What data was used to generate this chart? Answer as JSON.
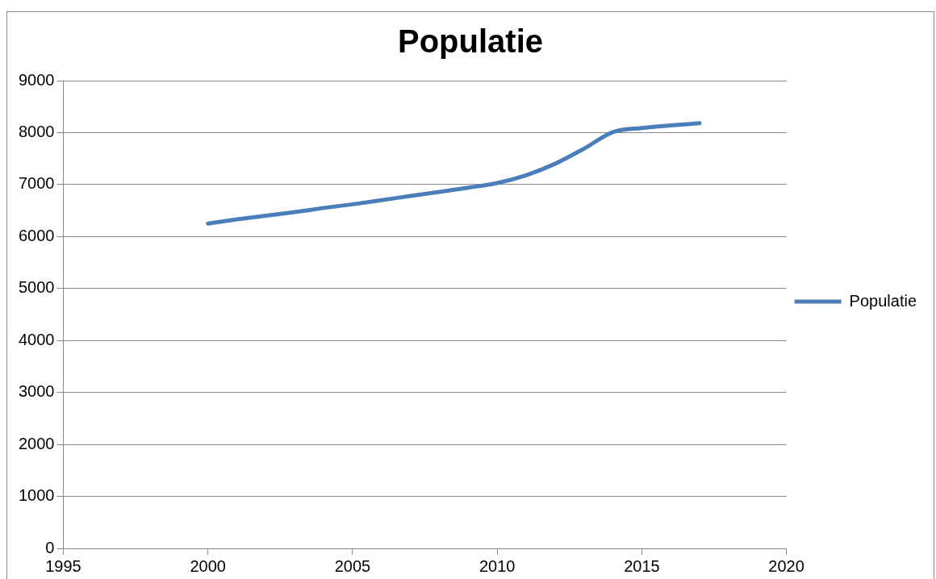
{
  "chart_data": {
    "type": "line",
    "title": "Populatie",
    "x": [
      2000,
      2001,
      2002,
      2003,
      2004,
      2005,
      2006,
      2007,
      2008,
      2009,
      2010,
      2011,
      2012,
      2013,
      2014,
      2015,
      2016,
      2017
    ],
    "series": [
      {
        "name": "Populatie",
        "color": "#4a7ebb",
        "values": [
          6250,
          6330,
          6400,
          6470,
          6550,
          6620,
          6700,
          6780,
          6860,
          6940,
          7030,
          7180,
          7400,
          7690,
          8010,
          8090,
          8140,
          8180
        ]
      }
    ],
    "xlim": [
      1995,
      2020
    ],
    "xticks": [
      1995,
      2000,
      2005,
      2010,
      2015,
      2020
    ],
    "ylim": [
      0,
      9000
    ],
    "yticks": [
      0,
      1000,
      2000,
      3000,
      4000,
      5000,
      6000,
      7000,
      8000,
      9000
    ],
    "grid": "y",
    "legend": "right",
    "marker": "none",
    "line_style": "solid"
  }
}
